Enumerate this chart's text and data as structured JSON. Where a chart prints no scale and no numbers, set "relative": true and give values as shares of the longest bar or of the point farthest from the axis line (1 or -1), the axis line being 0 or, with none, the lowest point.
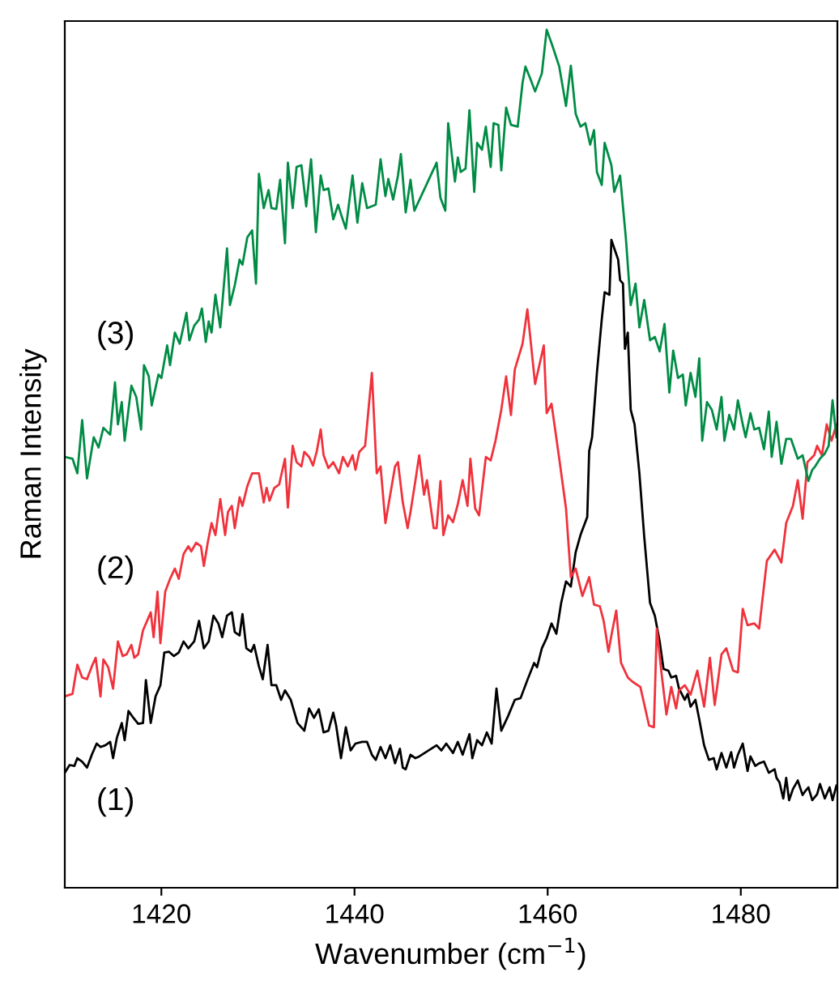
{
  "chart_data": {
    "type": "line",
    "relative": true,
    "xlabel": "Wavenumber (cm$^{−1}$)",
    "ylabel": "Raman Intensity",
    "xlim": [
      1410,
      1490
    ],
    "xticks": [
      1420,
      1440,
      1460,
      1480
    ],
    "tick_labels": "x",
    "grid": false,
    "legend": false,
    "series": [
      {
        "name": "(1)",
        "color": "#000000",
        "x": [
          1410.0,
          1410.5,
          1411.0,
          1411.3,
          1411.8,
          1412.3,
          1412.8,
          1413.3,
          1413.7,
          1414.2,
          1414.7,
          1415.0,
          1415.4,
          1415.9,
          1416.2,
          1416.6,
          1417.1,
          1417.6,
          1418.1,
          1418.4,
          1418.9,
          1419.4,
          1419.9,
          1420.3,
          1420.8,
          1421.3,
          1421.8,
          1422.3,
          1422.8,
          1423.4,
          1423.9,
          1424.4,
          1424.9,
          1425.4,
          1425.9,
          1426.3,
          1426.8,
          1427.3,
          1427.6,
          1428.1,
          1428.4,
          1428.8,
          1429.3,
          1429.6,
          1430.1,
          1430.5,
          1431.0,
          1431.4,
          1431.9,
          1432.4,
          1432.8,
          1433.4,
          1434.1,
          1434.8,
          1435.3,
          1435.8,
          1436.3,
          1436.8,
          1437.3,
          1437.8,
          1438.1,
          1438.6,
          1439.1,
          1439.6,
          1440.1,
          1440.8,
          1441.3,
          1441.8,
          1442.2,
          1442.7,
          1443.2,
          1443.7,
          1444.2,
          1444.7,
          1445.0,
          1445.3,
          1445.8,
          1446.3,
          1446.7,
          1448.5,
          1449.0,
          1449.5,
          1450.2,
          1450.7,
          1451.2,
          1451.9,
          1452.2,
          1452.7,
          1453.2,
          1453.7,
          1454.2,
          1454.7,
          1455.2,
          1455.9,
          1456.6,
          1457.2,
          1457.9,
          1458.6,
          1458.9,
          1459.4,
          1459.9,
          1460.4,
          1460.9,
          1461.4,
          1461.9,
          1462.4,
          1462.9,
          1463.4,
          1464.1,
          1464.3,
          1464.6,
          1465.1,
          1465.6,
          1465.9,
          1466.4,
          1466.6,
          1466.9,
          1467.3,
          1467.5,
          1467.8,
          1468.0,
          1468.3,
          1468.6,
          1469.0,
          1469.5,
          1470.0,
          1470.6,
          1471.1,
          1471.6,
          1472.0,
          1472.5,
          1472.8,
          1473.3,
          1473.6,
          1474.2,
          1474.5,
          1474.8,
          1475.3,
          1475.7,
          1476.2,
          1476.7,
          1477.2,
          1477.5,
          1478.0,
          1478.5,
          1479.0,
          1479.3,
          1479.7,
          1480.2,
          1480.7,
          1481.0,
          1481.5,
          1481.9,
          1482.4,
          1482.9,
          1483.2,
          1483.5,
          1483.7,
          1484.0,
          1484.4,
          1484.7,
          1485.0,
          1485.4,
          1485.9,
          1486.4,
          1486.7,
          1487.0,
          1487.4,
          1487.9,
          1488.2,
          1488.7,
          1489.2,
          1489.5,
          1489.9
        ],
        "values": [
          0.134,
          0.143,
          0.142,
          0.151,
          0.147,
          0.14,
          0.155,
          0.168,
          0.164,
          0.166,
          0.17,
          0.151,
          0.175,
          0.192,
          0.172,
          0.206,
          0.198,
          0.191,
          0.192,
          0.242,
          0.192,
          0.223,
          0.236,
          0.274,
          0.275,
          0.27,
          0.274,
          0.287,
          0.279,
          0.287,
          0.311,
          0.279,
          0.287,
          0.317,
          0.308,
          0.292,
          0.317,
          0.321,
          0.298,
          0.294,
          0.319,
          0.279,
          0.275,
          0.283,
          0.258,
          0.243,
          0.283,
          0.236,
          0.236,
          0.219,
          0.23,
          0.219,
          0.192,
          0.183,
          0.209,
          0.198,
          0.208,
          0.181,
          0.183,
          0.204,
          0.189,
          0.151,
          0.187,
          0.16,
          0.168,
          0.17,
          0.17,
          0.155,
          0.149,
          0.164,
          0.151,
          0.166,
          0.145,
          0.162,
          0.14,
          0.138,
          0.155,
          0.151,
          0.153,
          0.166,
          0.16,
          0.168,
          0.157,
          0.17,
          0.155,
          0.179,
          0.151,
          0.172,
          0.166,
          0.181,
          0.168,
          0.232,
          0.183,
          0.2,
          0.219,
          0.221,
          0.242,
          0.262,
          0.257,
          0.279,
          0.291,
          0.308,
          0.296,
          0.332,
          0.357,
          0.351,
          0.391,
          0.411,
          0.432,
          0.509,
          0.525,
          0.6,
          0.662,
          0.694,
          0.691,
          0.755,
          0.745,
          0.732,
          0.708,
          0.704,
          0.628,
          0.647,
          0.557,
          0.54,
          0.483,
          0.409,
          0.332,
          0.317,
          0.287,
          0.255,
          0.253,
          0.245,
          0.247,
          0.232,
          0.219,
          0.226,
          0.211,
          0.219,
          0.196,
          0.166,
          0.149,
          0.151,
          0.138,
          0.157,
          0.14,
          0.158,
          0.14,
          0.155,
          0.168,
          0.136,
          0.153,
          0.142,
          0.145,
          0.147,
          0.134,
          0.136,
          0.138,
          0.128,
          0.123,
          0.104,
          0.128,
          0.102,
          0.115,
          0.125,
          0.108,
          0.113,
          0.117,
          0.102,
          0.109,
          0.121,
          0.104,
          0.117,
          0.102,
          0.119
        ]
      },
      {
        "name": "(2)",
        "color": "#f0323c",
        "x": [
          1410.0,
          1410.8,
          1411.3,
          1411.8,
          1412.3,
          1412.8,
          1413.2,
          1413.7,
          1414.0,
          1414.5,
          1415.0,
          1415.5,
          1416.0,
          1416.4,
          1416.9,
          1417.2,
          1417.6,
          1418.1,
          1418.6,
          1418.9,
          1419.2,
          1419.6,
          1419.9,
          1420.4,
          1420.9,
          1421.4,
          1421.8,
          1422.3,
          1422.8,
          1423.1,
          1423.6,
          1424.1,
          1424.4,
          1424.8,
          1425.2,
          1425.6,
          1426.1,
          1426.6,
          1426.9,
          1427.3,
          1427.6,
          1428.1,
          1428.4,
          1428.9,
          1429.4,
          1430.1,
          1430.6,
          1430.9,
          1431.2,
          1431.7,
          1432.2,
          1432.8,
          1433.1,
          1433.6,
          1434.0,
          1434.5,
          1434.8,
          1435.3,
          1435.7,
          1436.1,
          1436.5,
          1436.8,
          1437.3,
          1437.8,
          1438.4,
          1438.8,
          1439.3,
          1439.8,
          1440.1,
          1440.5,
          1441.1,
          1441.8,
          1442.3,
          1442.7,
          1443.2,
          1443.7,
          1444.2,
          1444.5,
          1445.0,
          1445.5,
          1445.8,
          1446.3,
          1446.7,
          1447.2,
          1447.5,
          1448.2,
          1448.5,
          1448.9,
          1449.2,
          1449.7,
          1450.2,
          1450.7,
          1451.2,
          1451.7,
          1452.0,
          1452.5,
          1452.9,
          1453.6,
          1454.1,
          1454.6,
          1455.2,
          1455.7,
          1456.2,
          1456.6,
          1457.4,
          1457.9,
          1458.7,
          1459.6,
          1459.9,
          1460.4,
          1461.2,
          1461.9,
          1462.4,
          1462.9,
          1463.6,
          1464.3,
          1464.8,
          1465.4,
          1465.8,
          1466.3,
          1466.6,
          1467.1,
          1467.6,
          1468.3,
          1468.8,
          1469.6,
          1470.5,
          1471.0,
          1471.3,
          1471.8,
          1472.3,
          1472.8,
          1473.3,
          1473.6,
          1474.2,
          1474.8,
          1475.5,
          1476.2,
          1476.8,
          1477.3,
          1478.0,
          1478.5,
          1479.2,
          1479.7,
          1480.2,
          1480.7,
          1481.4,
          1481.9,
          1482.7,
          1483.2,
          1483.5,
          1484.2,
          1484.7,
          1485.4,
          1485.9,
          1486.4,
          1486.9,
          1487.6,
          1487.9,
          1488.4,
          1488.9,
          1489.4,
          1489.9
        ],
        "values": [
          0.223,
          0.226,
          0.26,
          0.245,
          0.243,
          0.258,
          0.268,
          0.223,
          0.266,
          0.257,
          0.232,
          0.287,
          0.27,
          0.272,
          0.283,
          0.268,
          0.272,
          0.3,
          0.313,
          0.321,
          0.292,
          0.345,
          0.285,
          0.345,
          0.36,
          0.372,
          0.36,
          0.389,
          0.398,
          0.392,
          0.402,
          0.398,
          0.375,
          0.402,
          0.425,
          0.411,
          0.453,
          0.411,
          0.438,
          0.445,
          0.419,
          0.455,
          0.445,
          0.468,
          0.483,
          0.483,
          0.449,
          0.466,
          0.451,
          0.466,
          0.47,
          0.5,
          0.443,
          0.515,
          0.496,
          0.491,
          0.508,
          0.502,
          0.492,
          0.509,
          0.534,
          0.504,
          0.489,
          0.496,
          0.483,
          0.502,
          0.491,
          0.504,
          0.487,
          0.508,
          0.515,
          0.6,
          0.483,
          0.491,
          0.425,
          0.458,
          0.491,
          0.496,
          0.449,
          0.419,
          0.438,
          0.474,
          0.504,
          0.458,
          0.475,
          0.419,
          0.419,
          0.474,
          0.411,
          0.434,
          0.426,
          0.447,
          0.475,
          0.445,
          0.5,
          0.442,
          0.434,
          0.502,
          0.498,
          0.521,
          0.557,
          0.596,
          0.551,
          0.604,
          0.634,
          0.674,
          0.587,
          0.632,
          0.553,
          0.564,
          0.5,
          0.442,
          0.362,
          0.372,
          0.34,
          0.362,
          0.33,
          0.328,
          0.311,
          0.275,
          0.294,
          0.323,
          0.262,
          0.245,
          0.24,
          0.234,
          0.189,
          0.187,
          0.302,
          0.249,
          0.202,
          0.234,
          0.209,
          0.23,
          0.236,
          0.225,
          0.253,
          0.211,
          0.268,
          0.213,
          0.272,
          0.279,
          0.253,
          0.251,
          0.325,
          0.306,
          0.308,
          0.302,
          0.381,
          0.389,
          0.394,
          0.379,
          0.425,
          0.445,
          0.475,
          0.43,
          0.496,
          0.504,
          0.515,
          0.504,
          0.54,
          0.521,
          0.54
        ]
      },
      {
        "name": "(3)",
        "color": "#008c45",
        "x": [
          1410.0,
          1410.8,
          1411.3,
          1411.8,
          1412.3,
          1413.0,
          1413.5,
          1414.0,
          1414.7,
          1415.2,
          1415.5,
          1415.9,
          1416.2,
          1416.9,
          1417.4,
          1417.9,
          1418.2,
          1418.7,
          1419.0,
          1419.7,
          1420.0,
          1420.6,
          1420.9,
          1421.4,
          1421.9,
          1422.6,
          1422.9,
          1423.4,
          1423.9,
          1424.2,
          1424.6,
          1424.9,
          1425.2,
          1425.6,
          1426.1,
          1426.8,
          1427.1,
          1427.6,
          1428.1,
          1428.4,
          1428.9,
          1429.4,
          1429.8,
          1430.1,
          1430.6,
          1431.1,
          1431.4,
          1431.9,
          1432.3,
          1432.8,
          1433.1,
          1433.6,
          1434.0,
          1434.5,
          1435.0,
          1435.5,
          1436.0,
          1436.5,
          1436.8,
          1437.3,
          1437.8,
          1438.3,
          1438.6,
          1439.1,
          1439.8,
          1440.3,
          1440.8,
          1441.3,
          1442.2,
          1442.7,
          1443.2,
          1443.5,
          1444.0,
          1444.5,
          1444.8,
          1445.3,
          1445.8,
          1446.2,
          1448.5,
          1448.9,
          1449.4,
          1449.7,
          1450.4,
          1450.7,
          1451.0,
          1451.5,
          1451.9,
          1452.4,
          1452.7,
          1453.2,
          1453.6,
          1454.1,
          1454.4,
          1454.9,
          1455.2,
          1455.7,
          1456.2,
          1456.9,
          1457.4,
          1457.7,
          1458.2,
          1458.7,
          1459.4,
          1459.9,
          1460.5,
          1461.2,
          1461.9,
          1462.4,
          1462.9,
          1463.4,
          1463.9,
          1464.4,
          1464.8,
          1465.1,
          1465.6,
          1465.9,
          1466.6,
          1466.9,
          1467.5,
          1468.1,
          1468.6,
          1469.1,
          1469.5,
          1470.0,
          1470.6,
          1471.1,
          1471.6,
          1472.1,
          1472.6,
          1473.0,
          1473.5,
          1474.0,
          1474.3,
          1474.8,
          1475.3,
          1475.7,
          1476.0,
          1476.5,
          1477.0,
          1477.5,
          1478.0,
          1478.3,
          1478.8,
          1479.3,
          1479.7,
          1480.2,
          1480.5,
          1481.0,
          1481.4,
          1481.9,
          1482.4,
          1482.9,
          1483.2,
          1483.7,
          1484.2,
          1484.7,
          1485.2,
          1485.9,
          1486.4,
          1487.0,
          1487.4,
          1487.7,
          1488.2,
          1488.7,
          1489.1,
          1489.5,
          1489.9
        ],
        "values": [
          0.502,
          0.5,
          0.483,
          0.545,
          0.477,
          0.525,
          0.513,
          0.536,
          0.528,
          0.589,
          0.54,
          0.566,
          0.521,
          0.585,
          0.572,
          0.534,
          0.609,
          0.596,
          0.562,
          0.598,
          0.594,
          0.632,
          0.609,
          0.647,
          0.634,
          0.67,
          0.638,
          0.655,
          0.662,
          0.675,
          0.636,
          0.66,
          0.647,
          0.691,
          0.653,
          0.745,
          0.679,
          0.702,
          0.732,
          0.726,
          0.758,
          0.766,
          0.704,
          0.832,
          0.792,
          0.813,
          0.792,
          0.791,
          0.825,
          0.751,
          0.845,
          0.792,
          0.84,
          0.842,
          0.794,
          0.849,
          0.764,
          0.83,
          0.813,
          0.815,
          0.779,
          0.796,
          0.785,
          0.768,
          0.83,
          0.775,
          0.821,
          0.792,
          0.796,
          0.849,
          0.806,
          0.826,
          0.802,
          0.83,
          0.855,
          0.787,
          0.825,
          0.789,
          0.845,
          0.804,
          0.789,
          0.891,
          0.823,
          0.851,
          0.834,
          0.838,
          0.906,
          0.811,
          0.868,
          0.86,
          0.887,
          0.84,
          0.891,
          0.889,
          0.836,
          0.909,
          0.889,
          0.887,
          0.938,
          0.957,
          0.943,
          0.928,
          0.949,
          1.0,
          0.981,
          0.957,
          0.911,
          0.958,
          0.902,
          0.887,
          0.891,
          0.866,
          0.883,
          0.834,
          0.819,
          0.868,
          0.842,
          0.811,
          0.83,
          0.757,
          0.679,
          0.704,
          0.653,
          0.685,
          0.638,
          0.642,
          0.625,
          0.657,
          0.577,
          0.626,
          0.594,
          0.598,
          0.562,
          0.6,
          0.572,
          0.617,
          0.521,
          0.566,
          0.557,
          0.534,
          0.572,
          0.521,
          0.551,
          0.534,
          0.568,
          0.54,
          0.525,
          0.553,
          0.534,
          0.536,
          0.511,
          0.555,
          0.502,
          0.543,
          0.494,
          0.523,
          0.523,
          0.5,
          0.504,
          0.474,
          0.487,
          0.491,
          0.5,
          0.506,
          0.515,
          0.568,
          0.525
        ]
      }
    ]
  }
}
